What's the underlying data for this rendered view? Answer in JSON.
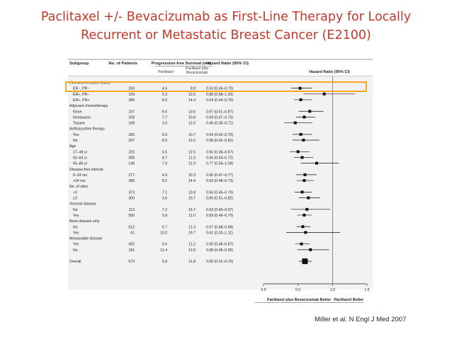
{
  "slide": {
    "title_line1": "Paclitaxel +/- Bevacizumab as First-Line Therapy for Locally",
    "title_line2": "Recurrent or Metastatic Breast Cancer (E2100)",
    "citation": "Miller et al. N Engl J Med 2007",
    "title_color": "#c0392b",
    "highlight_color": "#f5a623"
  },
  "chart_data": {
    "type": "forest",
    "columns": {
      "subgroup": "Subgroup",
      "n": "No. of Patients",
      "pfs": "Progression-free Survival (mo)",
      "paclitaxel": "Paclitaxel",
      "plus_line1": "Paclitaxel plus",
      "plus_line2": "Bevacizumab",
      "hr_text": "Hazard Ratio (95% CI)",
      "hr_plot": "Hazard Ratio (95% CI)"
    },
    "rows": [
      {
        "kind": "header",
        "label": "Hormone-receptor status"
      },
      {
        "kind": "data",
        "label": "ER−, PR−",
        "n": "233",
        "pac": "4.6",
        "bev": "8.8",
        "ci_text": "0.53 (0.40–0.70)",
        "hr": 0.53,
        "lo": 0.4,
        "hi": 0.7,
        "highlight": true
      },
      {
        "kind": "data",
        "label": "ER+, PR−",
        "n": "109",
        "pac": "9.3",
        "bev": "12.6",
        "ci_text": "0.88 (0.58–1.33)",
        "hr": 0.88,
        "lo": 0.58,
        "hi": 1.33
      },
      {
        "kind": "data",
        "label": "ER+, PR+",
        "n": "289",
        "pac": "8.0",
        "bev": "14.4",
        "ci_text": "0.54 (0.44–0.70)",
        "hr": 0.54,
        "lo": 0.44,
        "hi": 0.7
      },
      {
        "kind": "header",
        "label": "Adjuvant chemotherapy"
      },
      {
        "kind": "data",
        "label": "None",
        "n": "237",
        "pac": "6.5",
        "bev": "13.6",
        "ci_text": "0.67 (0.51–0.87)",
        "hr": 0.67,
        "lo": 0.51,
        "hi": 0.87
      },
      {
        "kind": "data",
        "label": "Nontaxane",
        "n": "328",
        "pac": "7.7",
        "bev": "10.8",
        "ci_text": "0.59 (0.47–0.75)",
        "hr": 0.59,
        "lo": 0.47,
        "hi": 0.75
      },
      {
        "kind": "data",
        "label": "Taxane",
        "n": "108",
        "pac": "3.0",
        "bev": "12.0",
        "ci_text": "0.46 (0.30–0.71)",
        "hr": 0.46,
        "lo": 0.3,
        "hi": 0.71
      },
      {
        "kind": "header",
        "label": "Anthracycline therapy"
      },
      {
        "kind": "data",
        "label": "Yes",
        "n": "269",
        "pac": "5.6",
        "bev": "10.7",
        "ci_text": "0.54 (0.42–0.70)",
        "hr": 0.54,
        "lo": 0.42,
        "hi": 0.7
      },
      {
        "kind": "data",
        "label": "No",
        "n": "267",
        "pac": "8.0",
        "bev": "13.2",
        "ci_text": "0.58 (0.42–0.81)",
        "hr": 0.58,
        "lo": 0.42,
        "hi": 0.81
      },
      {
        "kind": "header",
        "label": "Age"
      },
      {
        "kind": "data",
        "label": "27–49 yr",
        "n": "220",
        "pac": "5.5",
        "bev": "12.5",
        "ci_text": "0.50 (0.38–0.67)",
        "hr": 0.5,
        "lo": 0.38,
        "hi": 0.67
      },
      {
        "kind": "data",
        "label": "50–64 yr",
        "n": "305",
        "pac": "6.7",
        "bev": "11.3",
        "ci_text": "0.56 (0.44–0.72)",
        "hr": 0.56,
        "lo": 0.44,
        "hi": 0.72
      },
      {
        "kind": "data",
        "label": "65–85 yr",
        "n": "148",
        "pac": "7.9",
        "bev": "11.9",
        "ci_text": "0.77 (0.54–1.09)",
        "hr": 0.77,
        "lo": 0.54,
        "hi": 1.09
      },
      {
        "kind": "header",
        "label": "Disease-free interval"
      },
      {
        "kind": "data",
        "label": "0–24 mo",
        "n": "277",
        "pac": "4.9",
        "bev": "10.3",
        "ci_text": "0.60 (0.47–0.77)",
        "hr": 0.6,
        "lo": 0.47,
        "hi": 0.77
      },
      {
        "kind": "data",
        "label": ">24 mo",
        "n": "396",
        "pac": "8.2",
        "bev": "14.4",
        "ci_text": "0.59 (0.48–0.73)",
        "hr": 0.59,
        "lo": 0.48,
        "hi": 0.73
      },
      {
        "kind": "header",
        "label": "No. of sites"
      },
      {
        "kind": "data",
        "label": "<3",
        "n": "373",
        "pac": "7.1",
        "bev": "13.8",
        "ci_text": "0.56 (0.45–0.70)",
        "hr": 0.56,
        "lo": 0.45,
        "hi": 0.7
      },
      {
        "kind": "data",
        "label": "≥3",
        "n": "300",
        "pac": "3.6",
        "bev": "10.7",
        "ci_text": "0.65 (0.51–0.82)",
        "hr": 0.65,
        "lo": 0.51,
        "hi": 0.82
      },
      {
        "kind": "header",
        "label": "Visceral disease"
      },
      {
        "kind": "data",
        "label": "No",
        "n": "113",
        "pac": "7.2",
        "bev": "15.7",
        "ci_text": "0.63 (0.40–0.97)",
        "hr": 0.63,
        "lo": 0.4,
        "hi": 0.97
      },
      {
        "kind": "data",
        "label": "Yes",
        "n": "560",
        "pac": "5.8",
        "bev": "11.0",
        "ci_text": "0.59 (0.49–0.70)",
        "hr": 0.59,
        "lo": 0.49,
        "hi": 0.7
      },
      {
        "kind": "header",
        "label": "Bone disease only"
      },
      {
        "kind": "data",
        "label": "No",
        "n": "612",
        "pac": "5.7",
        "bev": "11.3",
        "ci_text": "0.57 (0.48–0.68)",
        "hr": 0.57,
        "lo": 0.48,
        "hi": 0.68
      },
      {
        "kind": "data",
        "label": "Yes",
        "n": "61",
        "pac": "13.0",
        "bev": "19.7",
        "ci_text": "0.61 (0.33–1.11)",
        "hr": 0.61,
        "lo": 0.33,
        "hi": 1.11
      },
      {
        "kind": "header",
        "label": "Measurable disease"
      },
      {
        "kind": "data",
        "label": "Yes",
        "n": "492",
        "pac": "5.6",
        "bev": "11.2",
        "ci_text": "0.55 (0.46–0.67)",
        "hr": 0.55,
        "lo": 0.46,
        "hi": 0.67
      },
      {
        "kind": "data",
        "label": "No",
        "n": "181",
        "pac": "11.4",
        "bev": "13.9",
        "ci_text": "0.68 (0.49–0.95)",
        "hr": 0.68,
        "lo": 0.49,
        "hi": 0.95
      },
      {
        "kind": "spacer"
      },
      {
        "kind": "data",
        "label": "Overall",
        "n": "673",
        "pac": "5.9",
        "bev": "11.8",
        "ci_text": "0.60 (0.51–0.70)",
        "hr": 0.6,
        "lo": 0.51,
        "hi": 0.7,
        "overall": true
      }
    ],
    "xlim": [
      0.0,
      1.5
    ],
    "xticks": [
      "0.0",
      "0.5",
      "1.0",
      "1.5"
    ],
    "reference_line": 1.0,
    "favors_left": "Paclitaxel plus Bevacizumab Better",
    "favors_right": "Paclitaxel Better"
  }
}
